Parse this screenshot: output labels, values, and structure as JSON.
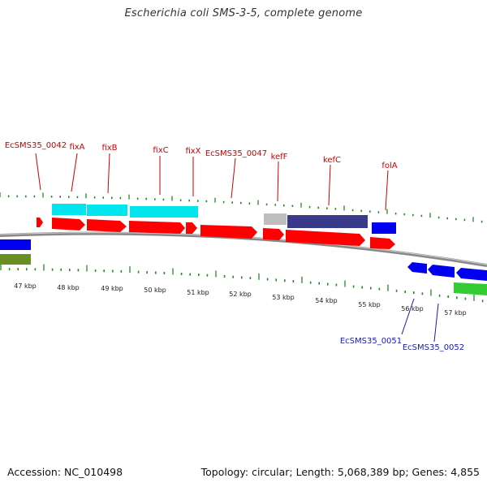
{
  "title": "Escherichia coli SMS-3-5, complete genome",
  "footer": {
    "accession": "Accession: NC_010498",
    "summary": "Topology: circular; Length: 5,068,389 bp; Genes: 4,855"
  },
  "colors": {
    "forward_label": "#cc0000",
    "reverse_label": "#1a1aaa",
    "tick": "#228b22",
    "backbone": "#888888",
    "cds": "#ff0000",
    "gene_cyan": "#00e5ee",
    "gene_navy": "#3a3a8a",
    "gene_grey": "#bdbdbd",
    "gene_blue": "#0000ee",
    "gene_green": "#33cc33",
    "gene_olive": "#6b8e23"
  },
  "scale_labels": [
    "47 kbp",
    "48 kbp",
    "49 kbp",
    "50 kbp",
    "51 kbp",
    "52 kbp",
    "53 kbp",
    "54 kbp",
    "55 kbp",
    "56 kbp",
    "57 kbp"
  ],
  "forward_labels": [
    "EcSMS35_0042",
    "fixA",
    "fixB",
    "fixC",
    "fixX",
    "EcSMS35_0047",
    "kefF",
    "kefC",
    "folA"
  ],
  "reverse_labels": [
    "EcSMS35_0051",
    "EcSMS35_0052"
  ]
}
